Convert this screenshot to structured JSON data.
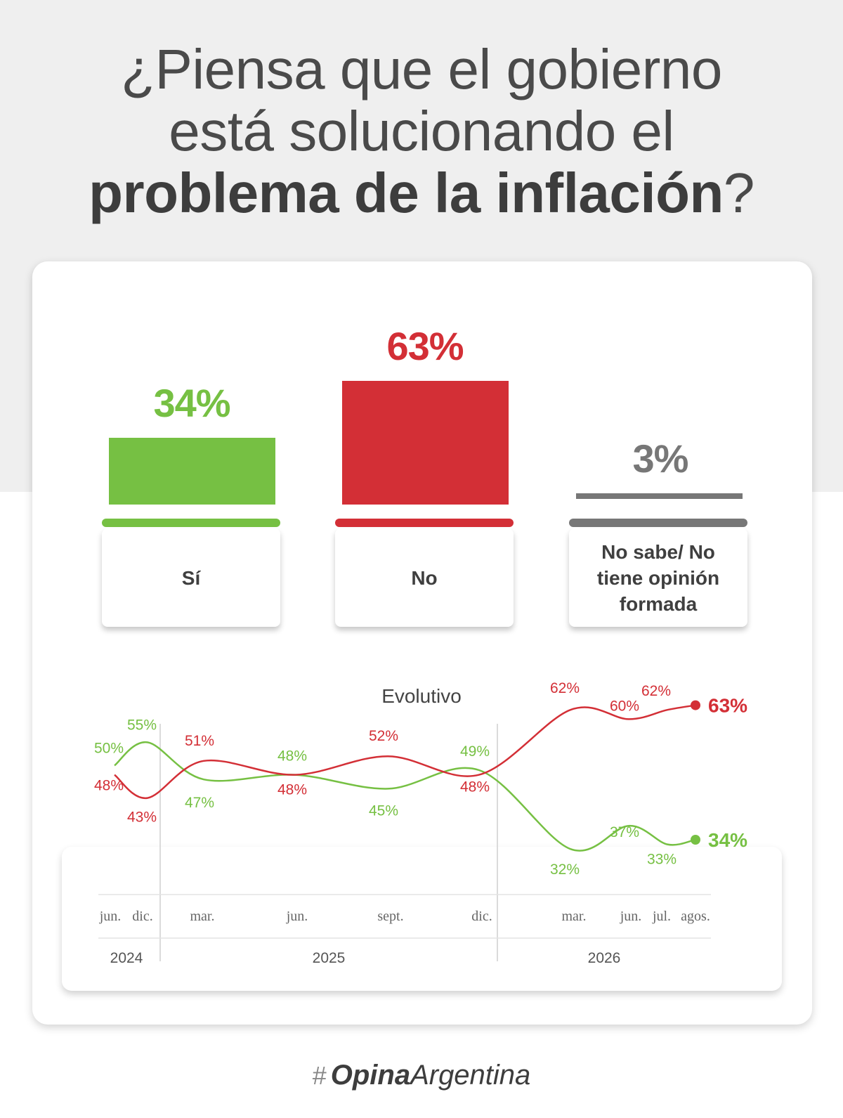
{
  "title": {
    "line1": "¿Piensa que el gobierno",
    "line2": "está solucionando el",
    "line3_bold": "problema de la inflación",
    "line3_end": "?"
  },
  "colors": {
    "si": "#76c043",
    "no": "#d32f36",
    "ns": "#777777"
  },
  "answers": [
    {
      "label": "Sí",
      "value": 34,
      "pct": "34%"
    },
    {
      "label": "No",
      "value": 63,
      "pct": "63%"
    },
    {
      "label": "No sabe/ No tiene opinión formada",
      "value": 3,
      "pct": "3%"
    }
  ],
  "evolution_title": "Evolutivo",
  "chart_data": [
    {
      "type": "bar",
      "categories": [
        "Sí",
        "No",
        "No sabe/ No tiene opinión formada"
      ],
      "values": [
        34,
        63,
        3
      ],
      "ylabel": "",
      "xlabel": ""
    },
    {
      "type": "line",
      "title": "Evolutivo",
      "x": [
        "jun. 2024",
        "dic. 2024",
        "mar. 2025",
        "jun. 2025",
        "sept. 2025",
        "dic. 2025",
        "mar. 2026",
        "jun. 2026",
        "jul. 2026",
        "agos. 2026"
      ],
      "x_tick_labels": [
        "jun.",
        "dic.",
        "mar.",
        "jun.",
        "sept.",
        "dic.",
        "mar.",
        "jun.",
        "jul.",
        "agos."
      ],
      "year_labels": [
        "2024",
        "2025",
        "2026"
      ],
      "series": [
        {
          "values": [
            50,
            55,
            47,
            48,
            45,
            49,
            32,
            37,
            33,
            34
          ],
          "color": "#76c043",
          "labels": [
            "50%",
            "55%",
            "47%",
            "48%",
            "45%",
            "49%",
            "32%",
            "37%",
            "33%",
            "34%"
          ]
        },
        {
          "values": [
            48,
            43,
            51,
            48,
            52,
            48,
            62,
            60,
            62,
            63
          ],
          "color": "#d32f36",
          "labels": [
            "48%",
            "43%",
            "51%",
            "48%",
            "52%",
            "48%",
            "62%",
            "60%",
            "62%",
            "63%"
          ]
        }
      ]
    }
  ],
  "logo": {
    "brand": "Opina",
    "rest": "Argentina"
  }
}
